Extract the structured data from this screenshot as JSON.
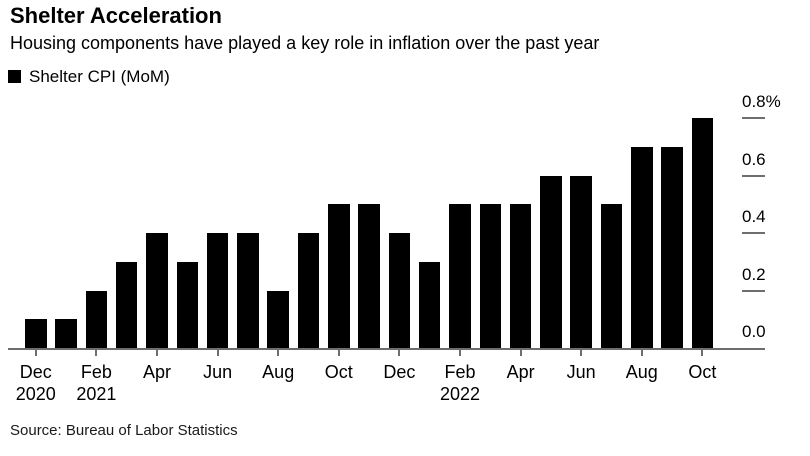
{
  "header": {
    "title": "Shelter Acceleration",
    "subtitle": "Housing components have played a key role in inflation over the past year"
  },
  "legend": {
    "label": "Shelter CPI (MoM)",
    "swatch_color": "#000000"
  },
  "footer": {
    "source": "Source: Bureau of Labor Statistics"
  },
  "colors": {
    "bar": "#000000",
    "axis": "#6e6e6e",
    "text": "#000000",
    "background": "#ffffff"
  },
  "chart_data": {
    "type": "bar",
    "title": "Shelter Acceleration",
    "subtitle": "Housing components have played a key role in inflation over the past year",
    "series_name": "Shelter CPI (MoM)",
    "unit": "%",
    "categories": [
      "Dec 2020",
      "Jan 2021",
      "Feb 2021",
      "Mar 2021",
      "Apr 2021",
      "May 2021",
      "Jun 2021",
      "Jul 2021",
      "Aug 2021",
      "Sep 2021",
      "Oct 2021",
      "Nov 2021",
      "Dec 2021",
      "Jan 2022",
      "Feb 2022",
      "Mar 2022",
      "Apr 2022",
      "May 2022",
      "Jun 2022",
      "Jul 2022",
      "Aug 2022",
      "Sep 2022",
      "Oct 2022"
    ],
    "values": [
      0.1,
      0.1,
      0.2,
      0.3,
      0.4,
      0.3,
      0.4,
      0.4,
      0.2,
      0.4,
      0.5,
      0.5,
      0.4,
      0.3,
      0.5,
      0.5,
      0.5,
      0.6,
      0.6,
      0.5,
      0.7,
      0.7,
      0.8
    ],
    "ylim": [
      0.0,
      0.8
    ],
    "y_ticks": [
      0.0,
      0.2,
      0.4,
      0.6,
      0.8
    ],
    "y_tick_labels": [
      "0.0",
      "0.2",
      "0.4",
      "0.6",
      "0.8%"
    ],
    "y_axis_side": "right",
    "grid": "off",
    "legend_position": "top-left",
    "x_ticks": [
      {
        "index": 0,
        "line1": "Dec",
        "line2": "2020"
      },
      {
        "index": 2,
        "line1": "Feb",
        "line2": "2021"
      },
      {
        "index": 4,
        "line1": "Apr",
        "line2": ""
      },
      {
        "index": 6,
        "line1": "Jun",
        "line2": ""
      },
      {
        "index": 8,
        "line1": "Aug",
        "line2": ""
      },
      {
        "index": 10,
        "line1": "Oct",
        "line2": ""
      },
      {
        "index": 12,
        "line1": "Dec",
        "line2": ""
      },
      {
        "index": 14,
        "line1": "Feb",
        "line2": "2022"
      },
      {
        "index": 16,
        "line1": "Apr",
        "line2": ""
      },
      {
        "index": 18,
        "line1": "Jun",
        "line2": ""
      },
      {
        "index": 20,
        "line1": "Aug",
        "line2": ""
      },
      {
        "index": 22,
        "line1": "Oct",
        "line2": ""
      }
    ]
  }
}
